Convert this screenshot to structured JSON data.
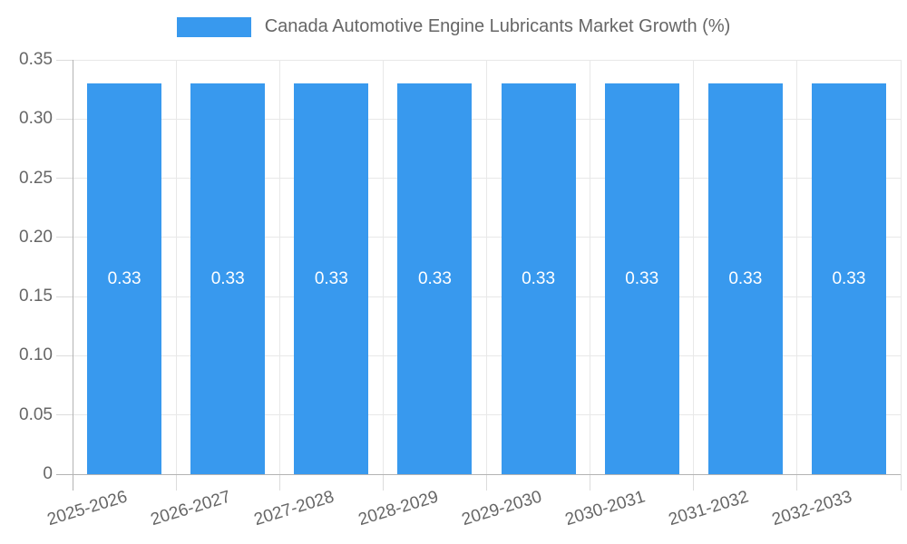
{
  "legend": {
    "label": "Canada Automotive Engine Lubricants Market Growth (%)",
    "swatch_color": "#3899ee"
  },
  "chart_data": {
    "type": "bar",
    "title": "Canada Automotive Engine Lubricants Market Growth (%)",
    "categories": [
      "2025-2026",
      "2026-2027",
      "2027-2028",
      "2028-2029",
      "2029-2030",
      "2030-2031",
      "2031-2032",
      "2032-2033"
    ],
    "values": [
      0.33,
      0.33,
      0.33,
      0.33,
      0.33,
      0.33,
      0.33,
      0.33
    ],
    "bar_labels": [
      "0.33",
      "0.33",
      "0.33",
      "0.33",
      "0.33",
      "0.33",
      "0.33",
      "0.33"
    ],
    "xlabel": "",
    "ylabel": "",
    "ylim": [
      0,
      0.35
    ],
    "yticks": [
      0,
      0.05,
      0.1,
      0.15,
      0.2,
      0.25,
      0.3,
      0.35
    ],
    "ytick_labels": [
      "0",
      "0.05",
      "0.10",
      "0.15",
      "0.20",
      "0.25",
      "0.30",
      "0.35"
    ],
    "grid": true,
    "legend_position": "top",
    "bar_color": "#3899ee",
    "bar_label_color": "#ffffff",
    "axis_text_color": "#666666"
  }
}
